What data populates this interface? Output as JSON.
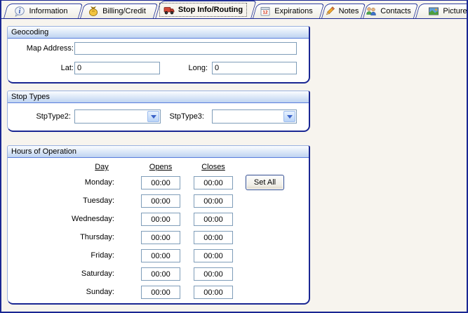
{
  "colors": {
    "window_border": "#1A2793",
    "page_background": "#F7F4EE",
    "group_header_gradient_top": "#FBFDFF",
    "group_header_gradient_bottom": "#BED3F1",
    "input_border": "#7F9DB9",
    "active_tab_focus": "#555555"
  },
  "tabs": [
    {
      "label": "Information",
      "icon": "info-icon",
      "active": false
    },
    {
      "label": "Billing/Credit",
      "icon": "money-bag-icon",
      "active": false
    },
    {
      "label": "Stop Info/Routing",
      "icon": "truck-icon",
      "active": true
    },
    {
      "label": "Expirations",
      "icon": "calendar-icon",
      "active": false
    },
    {
      "label": "Notes",
      "icon": "pencil-icon",
      "active": false
    },
    {
      "label": "Contacts",
      "icon": "contacts-icon",
      "active": false
    },
    {
      "label": "Picture",
      "icon": "picture-icon",
      "active": false
    }
  ],
  "geocoding": {
    "title": "Geocoding",
    "map_address_label": "Map Address:",
    "map_address_value": "",
    "lat_label": "Lat:",
    "lat_value": "0",
    "long_label": "Long:",
    "long_value": "0"
  },
  "stop_types": {
    "title": "Stop Types",
    "stptype2_label": "StpType2:",
    "stptype2_value": "",
    "stptype3_label": "StpType3:",
    "stptype3_value": ""
  },
  "hours": {
    "title": "Hours of Operation",
    "columns": {
      "day": "Day",
      "opens": "Opens",
      "closes": "Closes"
    },
    "set_all_label": "Set All",
    "rows": [
      {
        "day": "Monday:",
        "opens": "00:00",
        "closes": "00:00"
      },
      {
        "day": "Tuesday:",
        "opens": "00:00",
        "closes": "00:00"
      },
      {
        "day": "Wednesday:",
        "opens": "00:00",
        "closes": "00:00"
      },
      {
        "day": "Thursday:",
        "opens": "00:00",
        "closes": "00:00"
      },
      {
        "day": "Friday:",
        "opens": "00:00",
        "closes": "00:00"
      },
      {
        "day": "Saturday:",
        "opens": "00:00",
        "closes": "00:00"
      },
      {
        "day": "Sunday:",
        "opens": "00:00",
        "closes": "00:00"
      }
    ]
  }
}
